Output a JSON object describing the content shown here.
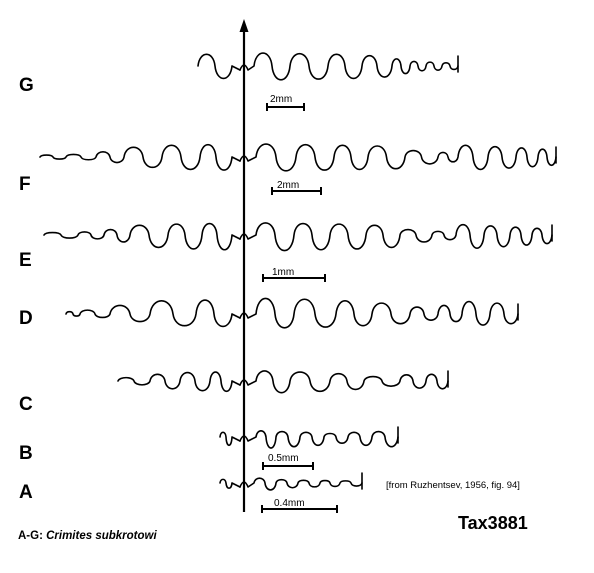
{
  "rows": [
    {
      "letter": "G"
    },
    {
      "letter": "F"
    },
    {
      "letter": "E"
    },
    {
      "letter": "D"
    },
    {
      "letter": "C"
    },
    {
      "letter": "B"
    },
    {
      "letter": "A"
    }
  ],
  "scale_bars": [
    {
      "label": "2mm"
    },
    {
      "label": "2mm"
    },
    {
      "label": "1mm"
    },
    {
      "label": "0.5mm"
    },
    {
      "label": "0.4mm"
    }
  ],
  "source_note": "[from Ruzhentsev, 1956, fig. 94]",
  "tax_id": "Tax3881",
  "caption": {
    "prefix": "A-G: ",
    "taxon": "Crimites subkrotowi"
  }
}
